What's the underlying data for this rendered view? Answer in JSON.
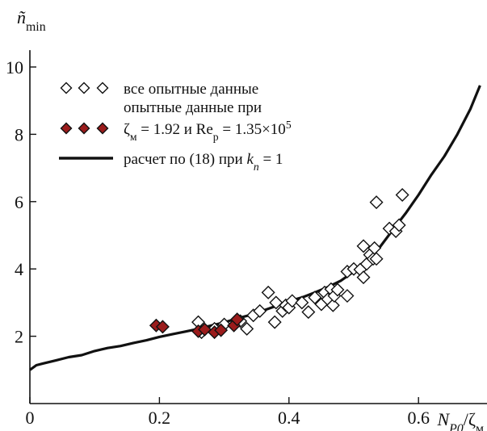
{
  "chart_data": {
    "type": "scatter",
    "ylabel": "ñ",
    "ylabel_sub": "min",
    "xlabel": "N",
    "xlabel_sub": "P0",
    "xlabel_suffix": "/ζ",
    "xlabel_suffix_sub": "м",
    "xlim": [
      0,
      0.72
    ],
    "ylim": [
      0,
      10.5
    ],
    "xticks": [
      {
        "value": 0,
        "label": "0"
      },
      {
        "value": 0.2,
        "label": "0.2"
      },
      {
        "value": 0.4,
        "label": "0.4"
      },
      {
        "value": 0.6,
        "label": "0.6"
      }
    ],
    "yticks": [
      {
        "value": 2,
        "label": "2"
      },
      {
        "value": 4,
        "label": "4"
      },
      {
        "value": 6,
        "label": "6"
      },
      {
        "value": 8,
        "label": "8"
      },
      {
        "value": 10,
        "label": "10"
      }
    ],
    "grid": false,
    "legend_position": "top-left",
    "legend": [
      {
        "symbol": "open-diamond",
        "lines": [
          {
            "parts": [
              {
                "t": "все опытные данные"
              }
            ]
          }
        ]
      },
      {
        "symbol": "filled-diamond",
        "lines": [
          {
            "parts": [
              {
                "t": "опытные данные при"
              }
            ]
          },
          {
            "parts": [
              {
                "t": "ζ"
              },
              {
                "t": "м",
                "sub": true
              },
              {
                "t": " = 1.92 и Re"
              },
              {
                "t": "p",
                "sub": true
              },
              {
                "t": " = 1.35×10"
              },
              {
                "t": "5",
                "sup": true
              }
            ]
          }
        ]
      },
      {
        "symbol": "line",
        "lines": [
          {
            "parts": [
              {
                "t": "расчет по (18) при "
              },
              {
                "t": "k",
                "italic": true
              },
              {
                "t": "n",
                "sub": true,
                "italic": true
              },
              {
                "t": " = 1"
              }
            ]
          }
        ]
      }
    ],
    "colors": {
      "filled_diamond": "#9b1c1c",
      "open_diamond_fill": "#ffffff",
      "stroke": "#111111",
      "line": "#111111"
    },
    "series": [
      {
        "key": "all_data",
        "marker": "open-diamond",
        "points": [
          [
            0.26,
            2.42
          ],
          [
            0.265,
            2.12
          ],
          [
            0.285,
            2.22
          ],
          [
            0.3,
            2.35
          ],
          [
            0.32,
            2.5
          ],
          [
            0.325,
            2.45
          ],
          [
            0.335,
            2.22
          ],
          [
            0.345,
            2.62
          ],
          [
            0.355,
            2.75
          ],
          [
            0.368,
            3.3
          ],
          [
            0.378,
            2.42
          ],
          [
            0.38,
            3.0
          ],
          [
            0.39,
            2.75
          ],
          [
            0.395,
            2.92
          ],
          [
            0.4,
            2.85
          ],
          [
            0.405,
            3.05
          ],
          [
            0.42,
            3.0
          ],
          [
            0.43,
            2.72
          ],
          [
            0.44,
            3.15
          ],
          [
            0.45,
            2.95
          ],
          [
            0.455,
            3.3
          ],
          [
            0.46,
            3.1
          ],
          [
            0.465,
            3.4
          ],
          [
            0.468,
            2.92
          ],
          [
            0.47,
            3.2
          ],
          [
            0.475,
            3.38
          ],
          [
            0.49,
            3.2
          ],
          [
            0.49,
            3.92
          ],
          [
            0.5,
            4.0
          ],
          [
            0.51,
            3.98
          ],
          [
            0.515,
            3.75
          ],
          [
            0.515,
            4.68
          ],
          [
            0.52,
            4.15
          ],
          [
            0.525,
            4.42
          ],
          [
            0.53,
            4.3
          ],
          [
            0.532,
            4.62
          ],
          [
            0.535,
            4.3
          ],
          [
            0.535,
            5.98
          ],
          [
            0.555,
            5.2
          ],
          [
            0.565,
            5.12
          ],
          [
            0.57,
            5.3
          ],
          [
            0.575,
            6.2
          ]
        ]
      },
      {
        "key": "selected_data",
        "marker": "filled-diamond",
        "points": [
          [
            0.195,
            2.32
          ],
          [
            0.205,
            2.28
          ],
          [
            0.26,
            2.15
          ],
          [
            0.27,
            2.2
          ],
          [
            0.285,
            2.12
          ],
          [
            0.295,
            2.18
          ],
          [
            0.315,
            2.32
          ],
          [
            0.32,
            2.5
          ]
        ]
      },
      {
        "key": "calculation",
        "marker": "line",
        "points": [
          [
            0.0,
            1.0
          ],
          [
            0.01,
            1.14
          ],
          [
            0.02,
            1.19
          ],
          [
            0.04,
            1.28
          ],
          [
            0.06,
            1.38
          ],
          [
            0.08,
            1.44
          ],
          [
            0.1,
            1.56
          ],
          [
            0.12,
            1.65
          ],
          [
            0.14,
            1.71
          ],
          [
            0.16,
            1.8
          ],
          [
            0.18,
            1.88
          ],
          [
            0.2,
            1.98
          ],
          [
            0.22,
            2.06
          ],
          [
            0.24,
            2.14
          ],
          [
            0.26,
            2.22
          ],
          [
            0.28,
            2.32
          ],
          [
            0.3,
            2.41
          ],
          [
            0.32,
            2.53
          ],
          [
            0.34,
            2.63
          ],
          [
            0.36,
            2.76
          ],
          [
            0.38,
            2.9
          ],
          [
            0.4,
            3.04
          ],
          [
            0.42,
            3.15
          ],
          [
            0.44,
            3.3
          ],
          [
            0.46,
            3.46
          ],
          [
            0.48,
            3.65
          ],
          [
            0.5,
            3.92
          ],
          [
            0.52,
            4.23
          ],
          [
            0.54,
            4.64
          ],
          [
            0.56,
            5.15
          ],
          [
            0.58,
            5.65
          ],
          [
            0.6,
            6.2
          ],
          [
            0.62,
            6.8
          ],
          [
            0.64,
            7.35
          ],
          [
            0.66,
            8.0
          ],
          [
            0.68,
            8.75
          ],
          [
            0.695,
            9.45
          ]
        ]
      }
    ]
  }
}
